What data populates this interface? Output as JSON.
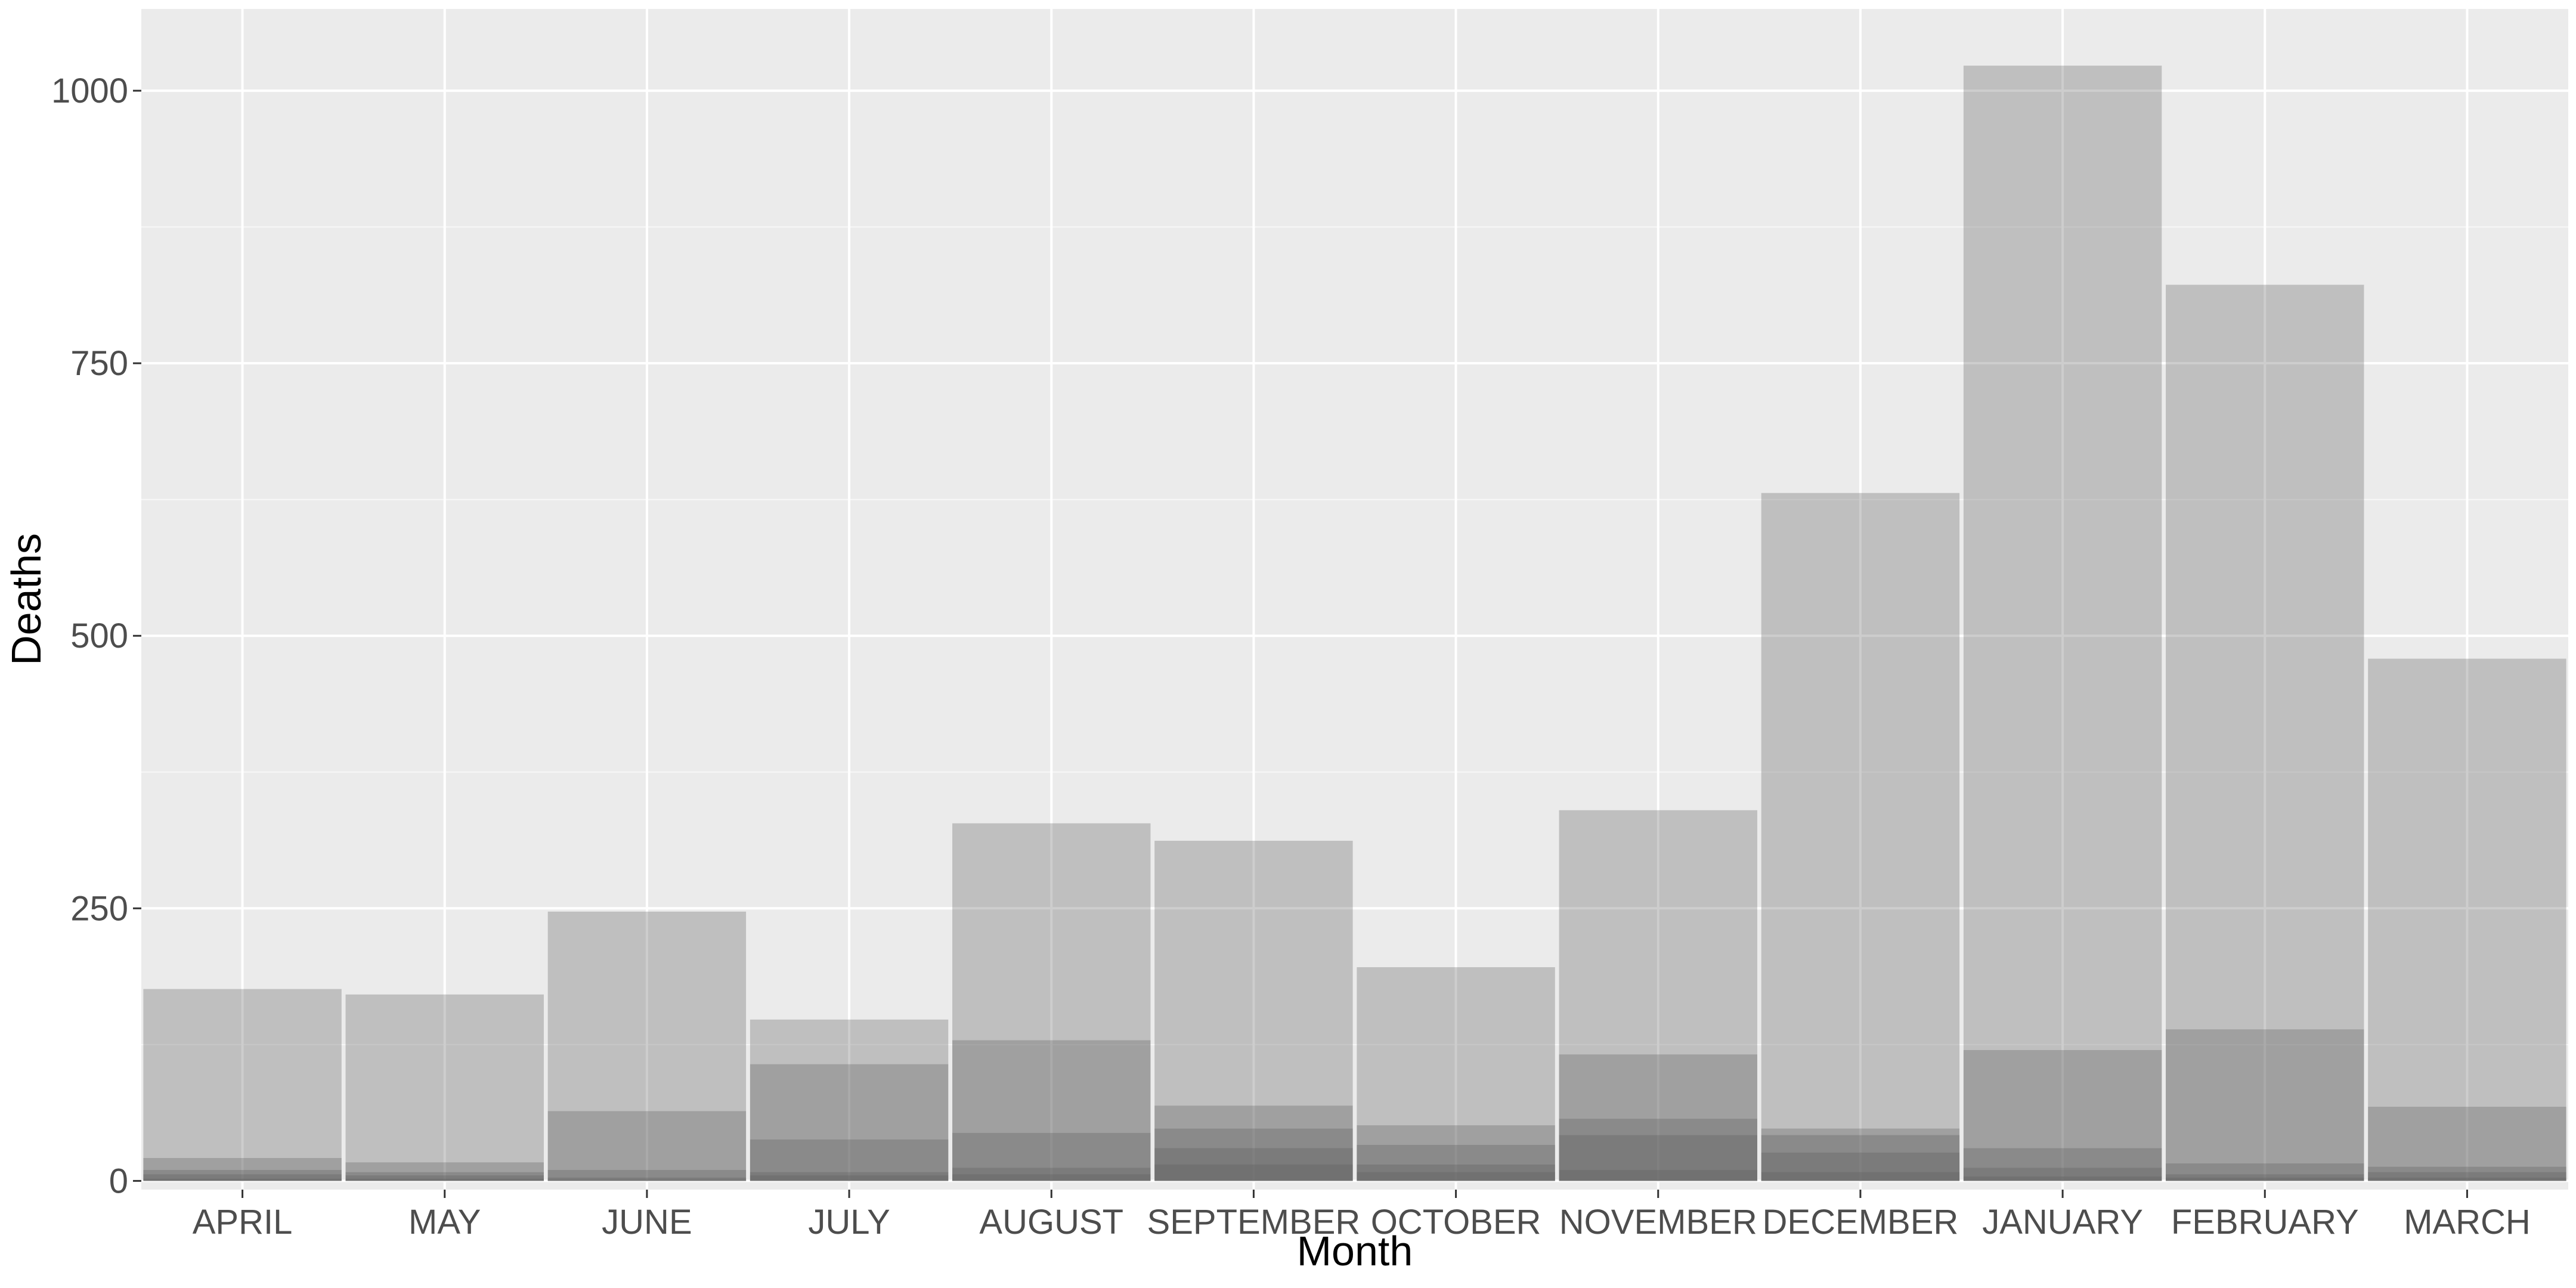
{
  "chart_data": {
    "type": "bar",
    "title": "",
    "xlabel": "Month",
    "ylabel": "Deaths",
    "categories": [
      "APRIL",
      "MAY",
      "JUNE",
      "JULY",
      "AUGUST",
      "SEPTEMBER",
      "OCTOBER",
      "NOVEMBER",
      "DECEMBER",
      "JANUARY",
      "FEBRUARY",
      "MARCH"
    ],
    "ylim": [
      -8,
      1075
    ],
    "yticks": [
      0,
      250,
      500,
      750,
      1000
    ],
    "ytick_labels": [
      "0",
      "250",
      "500",
      "750",
      "1000"
    ],
    "grid": true,
    "legend": "none",
    "bar_color": "#595959",
    "bar_opacity": 0.3,
    "panel_background": "#ebebeb",
    "series": [
      {
        "values": [
          176,
          171,
          247,
          148,
          328,
          312,
          196,
          340,
          631,
          1023,
          822,
          479
        ]
      },
      {
        "values": [
          21,
          17,
          64,
          107,
          129,
          69,
          51,
          116,
          48,
          120,
          139,
          68
        ]
      },
      {
        "values": [
          10,
          8,
          10,
          38,
          44,
          48,
          33,
          57,
          42,
          30,
          16,
          13
        ]
      },
      {
        "values": [
          6,
          5,
          3,
          8,
          12,
          30,
          15,
          42,
          26,
          12,
          6,
          8
        ]
      },
      {
        "values": [
          2,
          2,
          1,
          5,
          6,
          15,
          8,
          10,
          8,
          4,
          3,
          3
        ]
      }
    ]
  }
}
